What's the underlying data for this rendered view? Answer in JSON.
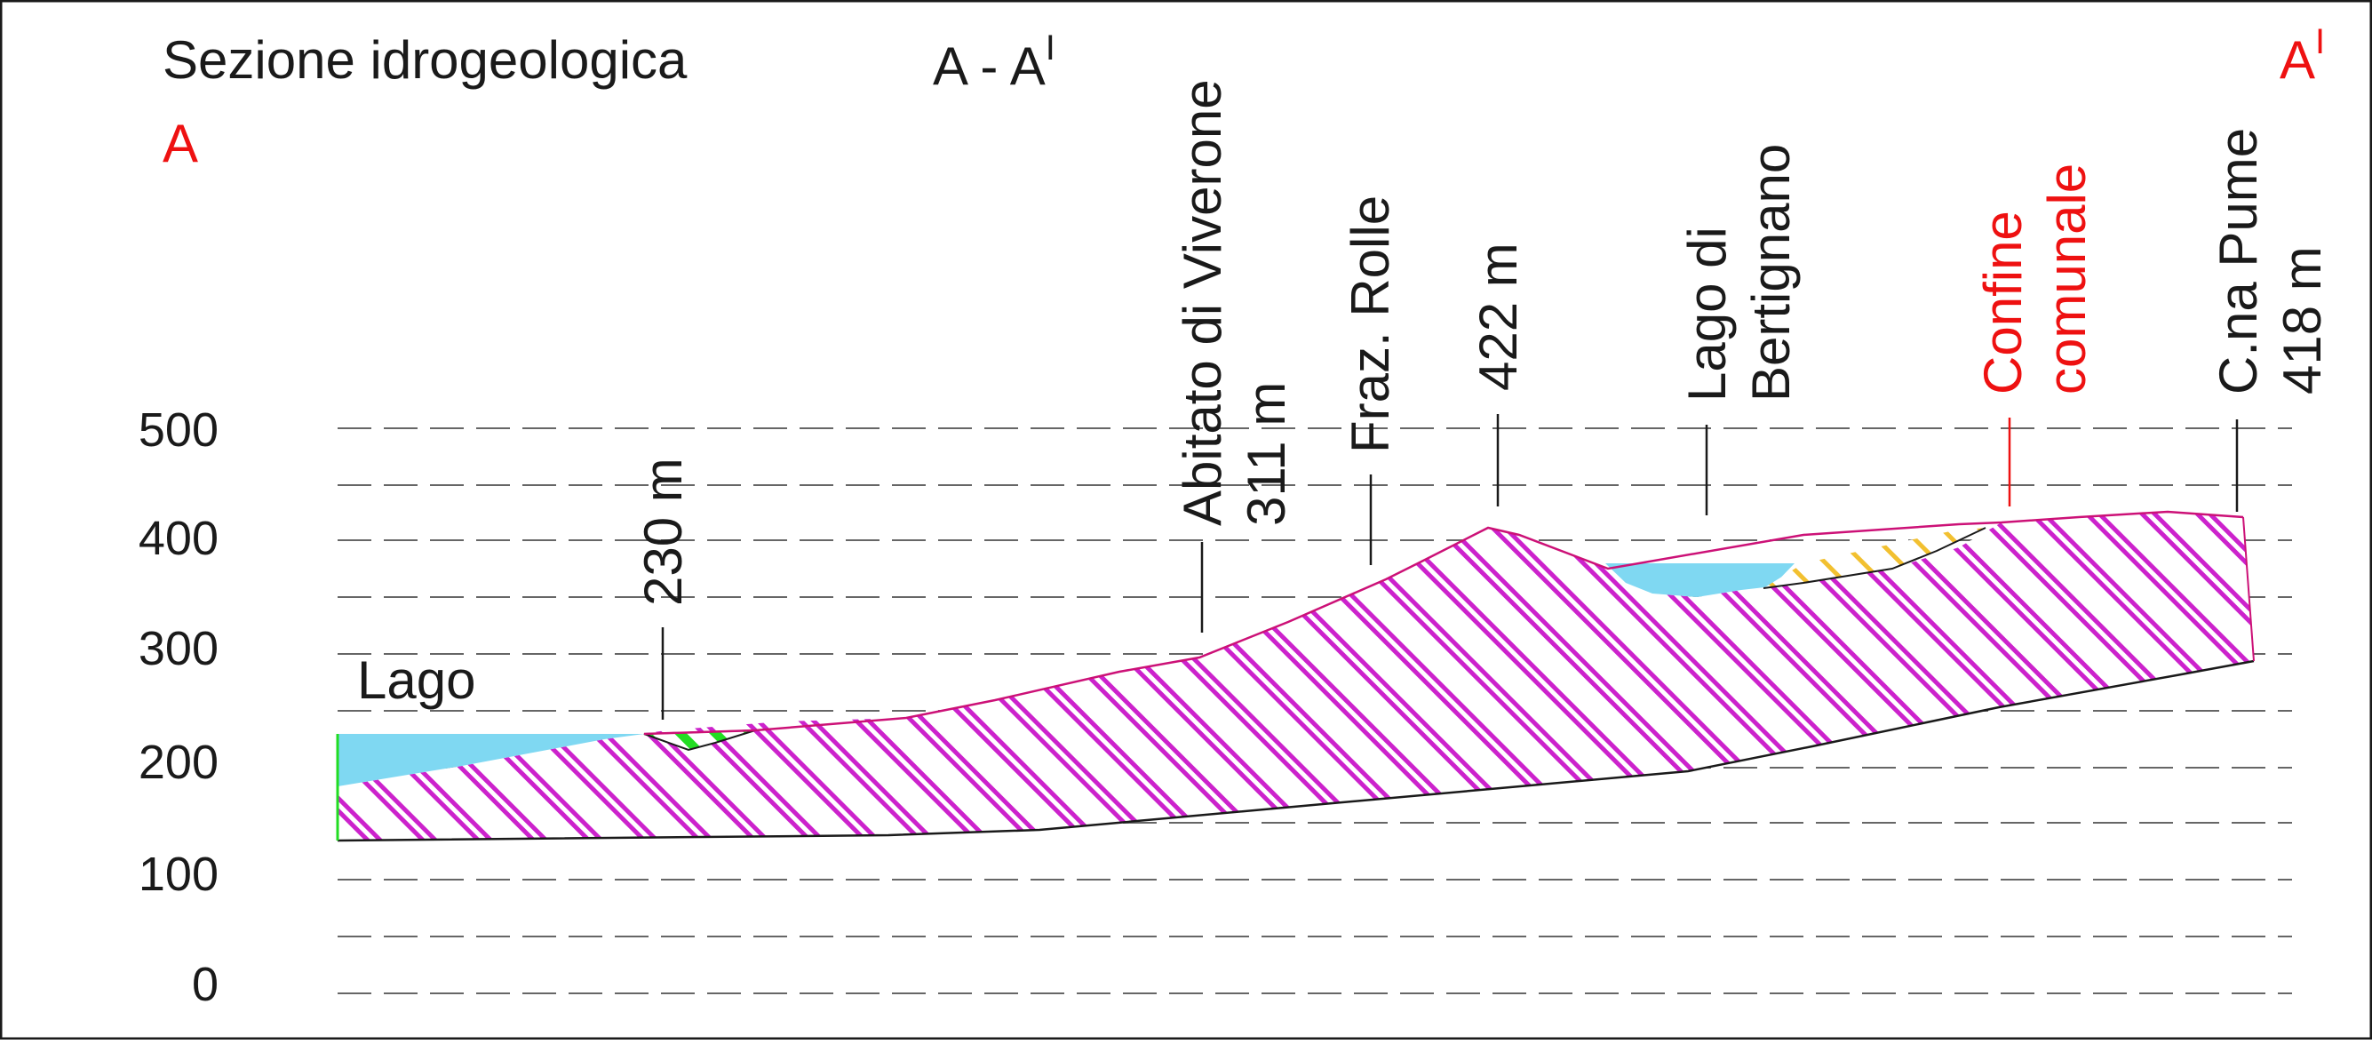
{
  "title": "Sezione idrogeologica",
  "section_name": "A - A",
  "section_name_sup": "I",
  "end_left": "A",
  "end_right": "A",
  "end_right_sup": "I",
  "y_ticks": [
    "500",
    "400",
    "300",
    "200",
    "100",
    "0"
  ],
  "labels": {
    "lago": "Lago",
    "q230": "230 m",
    "viverone_1": "Abitato di Viverone",
    "viverone_2": "311 m",
    "rolle": "Fraz. Rolle",
    "q422": "422 m",
    "bertignano_1": "Lago di",
    "bertignano_2": "Bertignano",
    "confine_1": "Confine",
    "confine_2": "comunale",
    "pume_1": "C.na Pume",
    "pume_2": "418 m"
  },
  "colors": {
    "water": "#7fd8f2",
    "hatch": "#cc22cc",
    "hatch_green": "#22dd22",
    "hatch_yellow": "#f2c030",
    "outline": "#cc1177",
    "accent": "#ee1111",
    "text": "#1a1a1a"
  }
}
